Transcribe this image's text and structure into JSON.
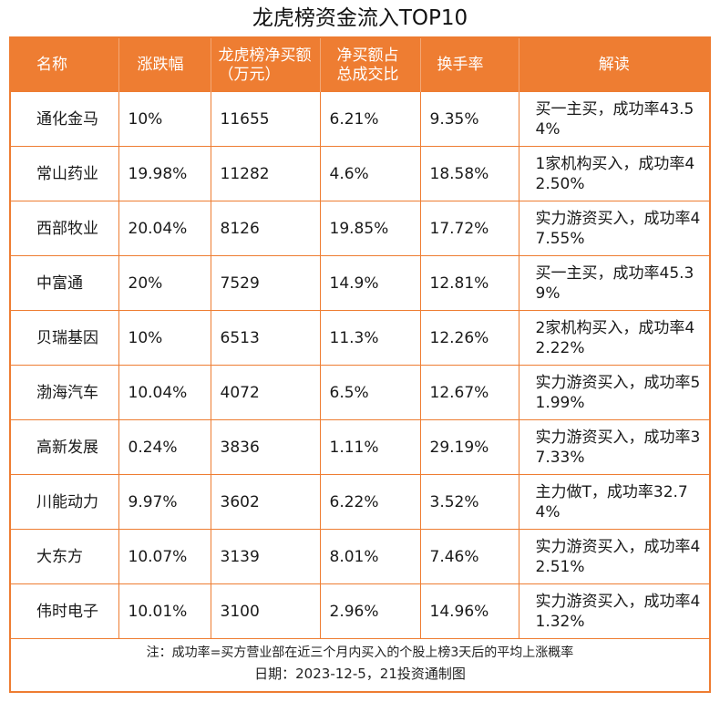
{
  "title": "龙虎榜资金流入TOP10",
  "headers": [
    "名称",
    "涨跌幅",
    "龙虎榜净买额（万元）",
    "净买额占总成交比",
    "换手率",
    "解读"
  ],
  "rows": [
    {
      "name": "通化金马",
      "change": "10%",
      "net_buy": "11655",
      "ratio": "6.21%",
      "turnover": "9.35%",
      "comment": "买一主买，成功率43.54%"
    },
    {
      "name": "常山药业",
      "change": "19.98%",
      "net_buy": "11282",
      "ratio": "4.6%",
      "turnover": "18.58%",
      "comment": "1家机构买入，成功率42.50%"
    },
    {
      "name": "西部牧业",
      "change": "20.04%",
      "net_buy": "8126",
      "ratio": "19.85%",
      "turnover": "17.72%",
      "comment": "实力游资买入，成功率47.55%"
    },
    {
      "name": "中富通",
      "change": "20%",
      "net_buy": "7529",
      "ratio": "14.9%",
      "turnover": "12.81%",
      "comment": "买一主买，成功率45.39%"
    },
    {
      "name": "贝瑞基因",
      "change": "10%",
      "net_buy": "6513",
      "ratio": "11.3%",
      "turnover": "12.26%",
      "comment": "2家机构买入，成功率42.22%"
    },
    {
      "name": "渤海汽车",
      "change": "10.04%",
      "net_buy": "4072",
      "ratio": "6.5%",
      "turnover": "12.67%",
      "comment": "实力游资买入，成功率51.99%"
    },
    {
      "name": "高新发展",
      "change": "0.24%",
      "net_buy": "3836",
      "ratio": "1.11%",
      "turnover": "29.19%",
      "comment": "实力游资买入，成功率37.33%"
    },
    {
      "name": "川能动力",
      "change": "9.97%",
      "net_buy": "3602",
      "ratio": "6.22%",
      "turnover": "3.52%",
      "comment": "主力做T，成功率32.74%"
    },
    {
      "name": "大东方",
      "change": "10.07%",
      "net_buy": "3139",
      "ratio": "8.01%",
      "turnover": "7.46%",
      "comment": "实力游资买入，成功率42.51%"
    },
    {
      "name": "伟时电子",
      "change": "10.01%",
      "net_buy": "3100",
      "ratio": "2.96%",
      "turnover": "14.96%",
      "comment": "实力游资买入，成功率41.32%"
    }
  ],
  "note": "注：成功率=买方营业部在近三个月内买入的个股上榜3天后的平均上涨概率",
  "date_line": "日期：2023-12-5，21投资通制图",
  "colors": {
    "accent": "#ee7d32"
  }
}
